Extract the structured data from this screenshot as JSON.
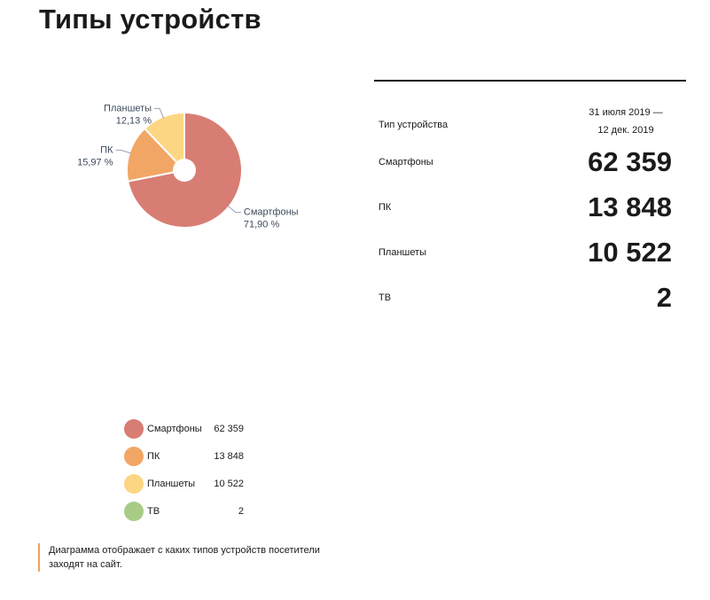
{
  "page": {
    "title": "Типы устройств"
  },
  "chart_data": {
    "type": "pie",
    "labels": [
      "Смартфоны",
      "ПК",
      "Планшеты",
      "ТВ"
    ],
    "values": [
      62359,
      13848,
      10522,
      2
    ],
    "percent_labels": [
      "71,90 %",
      "15,97 %",
      "12,13 %",
      ""
    ],
    "colors": [
      "#d87d73",
      "#f2a666",
      "#fcd683",
      "#a8cc86"
    ],
    "donut_hole": true
  },
  "table": {
    "column_header": "Тип устройства",
    "period_line1": "31 июля 2019 —",
    "period_line2": "12 дек. 2019",
    "rows": [
      {
        "label": "Смартфоны",
        "value": "62 359"
      },
      {
        "label": "ПК",
        "value": "13 848"
      },
      {
        "label": "Планшеты",
        "value": "10 522"
      },
      {
        "label": "ТВ",
        "value": "2"
      }
    ]
  },
  "legend": {
    "items": [
      {
        "name": "Смартфоны",
        "value": "62 359",
        "color": "#d87d73"
      },
      {
        "name": "ПК",
        "value": "13 848",
        "color": "#f2a666"
      },
      {
        "name": "Планшеты",
        "value": "10 522",
        "color": "#fcd683"
      },
      {
        "name": "ТВ",
        "value": "2",
        "color": "#a8cc86"
      }
    ]
  },
  "note": "Диаграмма отображает с каких типов устройств посетители заходят на сайт."
}
